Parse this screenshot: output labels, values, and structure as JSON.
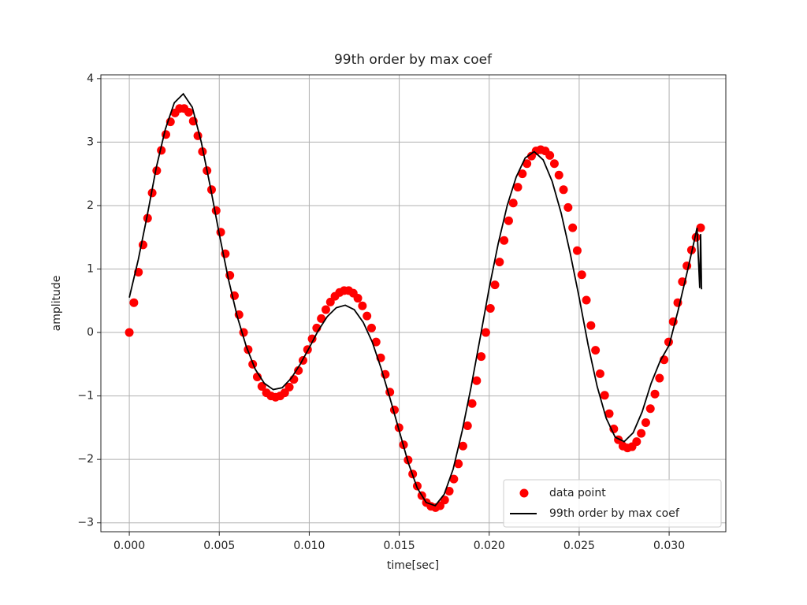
{
  "chart_data": {
    "type": "scatter",
    "title": "99th order by max coef",
    "xlabel": "time[sec]",
    "ylabel": "amplitude",
    "xlim": [
      -0.00158,
      0.03315
    ],
    "ylim": [
      -3.14,
      4.06
    ],
    "xticks": [
      {
        "value": 0,
        "label": "0.000"
      },
      {
        "value": 0.005,
        "label": "0.005"
      },
      {
        "value": 0.01,
        "label": "0.010"
      },
      {
        "value": 0.015,
        "label": "0.015"
      },
      {
        "value": 0.02,
        "label": "0.020"
      },
      {
        "value": 0.025,
        "label": "0.025"
      },
      {
        "value": 0.03,
        "label": "0.030"
      }
    ],
    "yticks": [
      {
        "value": -3,
        "label": "−3"
      },
      {
        "value": -2,
        "label": "−2"
      },
      {
        "value": -1,
        "label": "−1"
      },
      0,
      1,
      2,
      3,
      4
    ],
    "grid": true,
    "legend": "lower right",
    "series": [
      {
        "name": "data point",
        "type": "scatter",
        "color": "#ff0000",
        "x": [
          0,
          0.000254,
          0.000508,
          0.000762,
          0.001016,
          0.00127,
          0.001524,
          0.001778,
          0.002032,
          0.002286,
          0.00254,
          0.002794,
          0.003048,
          0.003302,
          0.003556,
          0.00381,
          0.004064,
          0.004318,
          0.004572,
          0.004826,
          0.00508,
          0.005334,
          0.005588,
          0.005842,
          0.006096,
          0.00635,
          0.006604,
          0.006858,
          0.007112,
          0.007366,
          0.00762,
          0.007874,
          0.008128,
          0.008382,
          0.008636,
          0.00889,
          0.009144,
          0.009398,
          0.009652,
          0.009906,
          0.01016,
          0.010414,
          0.010668,
          0.010922,
          0.011176,
          0.01143,
          0.011684,
          0.011938,
          0.012192,
          0.012446,
          0.0127,
          0.012954,
          0.013208,
          0.013462,
          0.013716,
          0.01397,
          0.014224,
          0.014478,
          0.014732,
          0.014986,
          0.01524,
          0.015494,
          0.015748,
          0.016002,
          0.016256,
          0.01651,
          0.016764,
          0.017018,
          0.017272,
          0.017526,
          0.01778,
          0.018034,
          0.018288,
          0.018542,
          0.018796,
          0.01905,
          0.019304,
          0.019558,
          0.019812,
          0.020066,
          0.02032,
          0.020574,
          0.020828,
          0.021082,
          0.021336,
          0.02159,
          0.021844,
          0.022098,
          0.022352,
          0.022606,
          0.02286,
          0.023114,
          0.023368,
          0.023622,
          0.023876,
          0.02413,
          0.024384,
          0.024638,
          0.024892,
          0.025146,
          0.0254,
          0.025654,
          0.025908,
          0.026162,
          0.026416,
          0.02667,
          0.026924,
          0.027178,
          0.027432,
          0.027686,
          0.02794,
          0.028194,
          0.028448,
          0.028702,
          0.028956,
          0.02921,
          0.029464,
          0.029718,
          0.029972,
          0.030226,
          0.03048,
          0.030734,
          0.030988,
          0.031242,
          0.031496,
          0.03175
        ],
        "values": [
          0,
          0.47,
          0.95,
          1.38,
          1.8,
          2.2,
          2.55,
          2.87,
          3.12,
          3.32,
          3.46,
          3.53,
          3.53,
          3.47,
          3.33,
          3.1,
          2.85,
          2.55,
          2.25,
          1.92,
          1.58,
          1.24,
          0.9,
          0.58,
          0.28,
          0,
          -0.27,
          -0.5,
          -0.7,
          -0.85,
          -0.95,
          -1,
          -1.02,
          -1,
          -0.95,
          -0.86,
          -0.74,
          -0.6,
          -0.44,
          -0.27,
          -0.1,
          0.07,
          0.22,
          0.36,
          0.48,
          0.57,
          0.63,
          0.66,
          0.66,
          0.62,
          0.54,
          0.42,
          0.26,
          0.07,
          -0.15,
          -0.4,
          -0.66,
          -0.94,
          -1.22,
          -1.5,
          -1.77,
          -2.01,
          -2.23,
          -2.42,
          -2.57,
          -2.68,
          -2.74,
          -2.76,
          -2.73,
          -2.64,
          -2.5,
          -2.31,
          -2.07,
          -1.79,
          -1.47,
          -1.12,
          -0.76,
          -0.38,
          0,
          0.38,
          0.75,
          1.11,
          1.45,
          1.76,
          2.04,
          2.29,
          2.5,
          2.66,
          2.78,
          2.86,
          2.88,
          2.86,
          2.79,
          2.66,
          2.48,
          2.25,
          1.97,
          1.65,
          1.29,
          0.91,
          0.51,
          0.11,
          -0.28,
          -0.65,
          -0.99,
          -1.28,
          -1.52,
          -1.69,
          -1.79,
          -1.82,
          -1.8,
          -1.72,
          -1.59,
          -1.42,
          -1.2,
          -0.97,
          -0.72,
          -0.43,
          -0.15,
          0.17,
          0.47,
          0.8,
          1.05,
          1.3,
          1.5,
          1.65
        ]
      },
      {
        "name": "99th order by max coef",
        "type": "line",
        "color": "#000000",
        "x": [
          0,
          0.0005,
          0.001,
          0.0015,
          0.002,
          0.0025,
          0.003,
          0.0035,
          0.004,
          0.0045,
          0.005,
          0.0055,
          0.006,
          0.0065,
          0.007,
          0.0075,
          0.008,
          0.0085,
          0.009,
          0.0095,
          0.01,
          0.0105,
          0.011,
          0.0115,
          0.012,
          0.0125,
          0.013,
          0.0135,
          0.014,
          0.0145,
          0.015,
          0.0155,
          0.016,
          0.0165,
          0.017,
          0.0175,
          0.018,
          0.0185,
          0.019,
          0.0195,
          0.02,
          0.0205,
          0.021,
          0.0215,
          0.022,
          0.0225,
          0.023,
          0.0235,
          0.024,
          0.0245,
          0.025,
          0.0255,
          0.026,
          0.0265,
          0.027,
          0.0275,
          0.028,
          0.0285,
          0.029,
          0.0295,
          0.03,
          0.0305,
          0.031,
          0.0314,
          0.03155,
          0.0317,
          0.03175,
          0.0318
        ],
        "values": [
          0.55,
          1.15,
          1.85,
          2.6,
          3.2,
          3.62,
          3.76,
          3.55,
          3,
          2.3,
          1.55,
          0.85,
          0.25,
          -0.22,
          -0.58,
          -0.8,
          -0.9,
          -0.87,
          -0.72,
          -0.5,
          -0.24,
          0.03,
          0.25,
          0.39,
          0.43,
          0.36,
          0.16,
          -0.15,
          -0.57,
          -1.05,
          -1.55,
          -2.05,
          -2.45,
          -2.68,
          -2.73,
          -2.55,
          -2.15,
          -1.55,
          -0.85,
          -0.08,
          0.7,
          1.4,
          2,
          2.45,
          2.75,
          2.85,
          2.72,
          2.38,
          1.88,
          1.25,
          0.55,
          -0.2,
          -0.85,
          -1.35,
          -1.65,
          -1.72,
          -1.58,
          -1.25,
          -0.8,
          -0.45,
          -0.2,
          0.35,
          0.95,
          1.45,
          1.65,
          0.7,
          1.55,
          0.68
        ]
      }
    ]
  }
}
